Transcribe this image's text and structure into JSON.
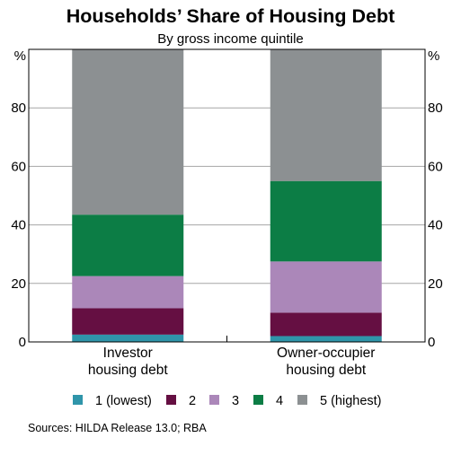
{
  "title": "Households’ Share of Housing Debt",
  "subtitle": "By gross income quintile",
  "source": "Sources:  HILDA Release 13.0; RBA",
  "chart_data": {
    "type": "bar",
    "stacked": true,
    "title": "Households’ Share of Housing Debt",
    "subtitle": "By gross income quintile",
    "ylabel_left": "%",
    "ylabel_right": "%",
    "ylim": [
      0,
      100
    ],
    "yticks": [
      0,
      20,
      40,
      60,
      80
    ],
    "grid": true,
    "legend_position": "bottom",
    "categories": [
      [
        "Investor",
        "housing debt"
      ],
      [
        "Owner-occupier",
        "housing debt"
      ]
    ],
    "series": [
      {
        "name": "1 (lowest)",
        "color": "#2f95aa",
        "values": [
          2.5,
          2
        ]
      },
      {
        "name": "2",
        "color": "#650f42",
        "values": [
          9,
          8
        ]
      },
      {
        "name": "3",
        "color": "#ab87b9",
        "values": [
          11,
          17.5
        ]
      },
      {
        "name": "4",
        "color": "#0c7d45",
        "values": [
          21,
          27.5
        ]
      },
      {
        "name": "5 (highest)",
        "color": "#8c9092",
        "values": [
          56.5,
          45
        ]
      }
    ]
  }
}
